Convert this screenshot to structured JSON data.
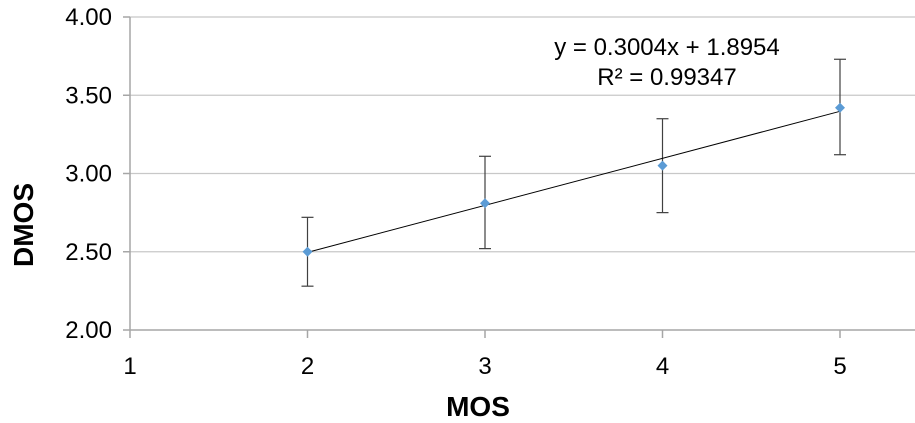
{
  "chart_data": {
    "type": "scatter",
    "xlabel": "MOS",
    "ylabel": "DMOS",
    "xlim": [
      1,
      5.4
    ],
    "ylim": [
      2.0,
      4.0
    ],
    "x_ticks": [
      1,
      2,
      3,
      4,
      5
    ],
    "x_tick_labels": [
      "1",
      "2",
      "3",
      "4",
      "5"
    ],
    "y_ticks": [
      2.0,
      2.5,
      3.0,
      3.5,
      4.0
    ],
    "y_tick_labels": [
      "2.00",
      "2.50",
      "3.00",
      "3.50",
      "4.00"
    ],
    "grid": "horizontal",
    "series": [
      {
        "x": [
          2,
          3,
          4,
          5
        ],
        "y": [
          2.5,
          2.81,
          3.05,
          3.42
        ],
        "error_low": [
          2.28,
          2.52,
          2.75,
          3.12
        ],
        "error_high": [
          2.72,
          3.11,
          3.35,
          3.73
        ],
        "color": "#5b9bd5",
        "marker": "diamond"
      }
    ],
    "trendline": {
      "type": "linear",
      "slope": 0.3004,
      "intercept": 1.8954,
      "x_range": [
        2,
        5
      ],
      "color": "#000000"
    },
    "annotations": {
      "equation": "y = 0.3004x + 1.8954",
      "r_squared": "R² = 0.99347"
    },
    "colors": {
      "grid": "#c8c8c8",
      "axis": "#a6a6a6",
      "error_bar": "#404040"
    }
  }
}
